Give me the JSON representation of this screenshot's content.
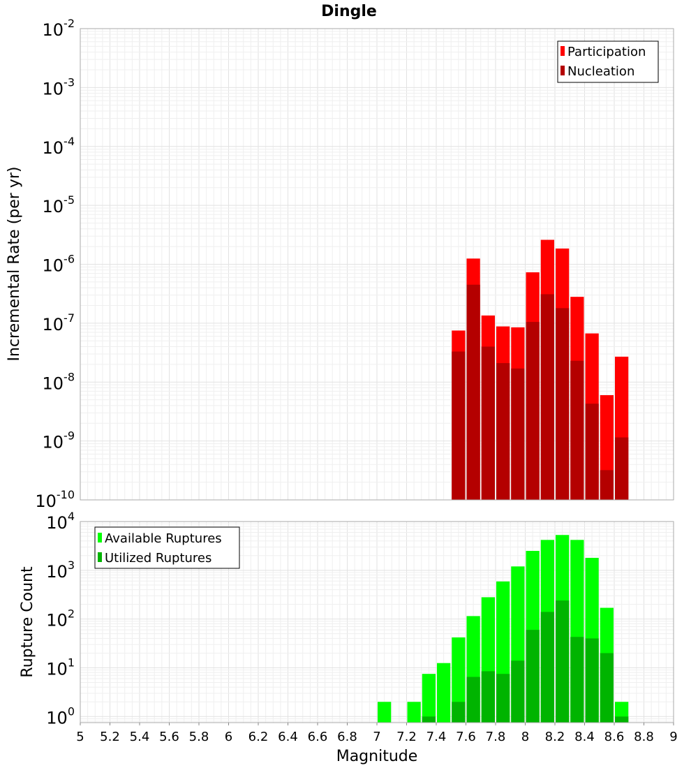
{
  "chart_data": [
    {
      "type": "bar",
      "title": "Dingle",
      "ylabel": "Incremental Rate (per yr)",
      "y_scale": "log",
      "ylim": [
        1e-10,
        0.01
      ],
      "xlim": [
        5,
        9
      ],
      "y_ticks": [
        {
          "base": "10",
          "exp": "-10"
        },
        {
          "base": "10",
          "exp": "-9"
        },
        {
          "base": "10",
          "exp": "-8"
        },
        {
          "base": "10",
          "exp": "-7"
        },
        {
          "base": "10",
          "exp": "-6"
        },
        {
          "base": "10",
          "exp": "-5"
        },
        {
          "base": "10",
          "exp": "-4"
        },
        {
          "base": "10",
          "exp": "-3"
        },
        {
          "base": "10",
          "exp": "-2"
        }
      ],
      "x": [
        7.55,
        7.65,
        7.75,
        7.85,
        7.95,
        8.05,
        8.15,
        8.25,
        8.35,
        8.45,
        8.55,
        8.65
      ],
      "series": [
        {
          "name": "Participation",
          "color": "#ff0000",
          "values": [
            7.5e-08,
            1.25e-06,
            1.35e-07,
            8.8e-08,
            8.5e-08,
            7.3e-07,
            2.6e-06,
            1.85e-06,
            2.8e-07,
            6.7e-08,
            6e-09,
            2.7e-08
          ]
        },
        {
          "name": "Nucleation",
          "color": "#b40000",
          "values": [
            3.3e-08,
            4.5e-07,
            4e-08,
            2.1e-08,
            1.7e-08,
            1.05e-07,
            3.1e-07,
            1.8e-07,
            2.3e-08,
            4.3e-09,
            3.2e-10,
            1.15e-09
          ]
        }
      ],
      "legend_position": "top-right",
      "grid": true
    },
    {
      "type": "bar",
      "ylabel": "Rupture Count",
      "xlabel": "Magnitude",
      "y_scale": "log",
      "ylim": [
        0.75,
        10000
      ],
      "xlim": [
        5,
        9
      ],
      "x_tick_labels": [
        "5",
        "5.2",
        "5.4",
        "5.6",
        "5.8",
        "6",
        "6.2",
        "6.4",
        "6.6",
        "6.8",
        "7",
        "7.2",
        "7.4",
        "7.6",
        "7.8",
        "8",
        "8.2",
        "8.4",
        "8.6",
        "8.8",
        "9"
      ],
      "y_ticks": [
        {
          "base": "10",
          "exp": "0"
        },
        {
          "base": "10",
          "exp": "1"
        },
        {
          "base": "10",
          "exp": "2"
        },
        {
          "base": "10",
          "exp": "3"
        },
        {
          "base": "10",
          "exp": "4"
        }
      ],
      "x": [
        7.05,
        7.25,
        7.35,
        7.45,
        7.55,
        7.65,
        7.75,
        7.85,
        7.95,
        8.05,
        8.15,
        8.25,
        8.35,
        8.45,
        8.55,
        8.65
      ],
      "series": [
        {
          "name": "Available Ruptures",
          "color": "#00ff00",
          "values": [
            2,
            2,
            7.5,
            12.5,
            42,
            115,
            280,
            590,
            1200,
            2500,
            4200,
            5300,
            4200,
            1800,
            170,
            2
          ]
        },
        {
          "name": "Utilized Ruptures",
          "color": "#00b400",
          "values": [
            0,
            0,
            1,
            0,
            2,
            6.5,
            8.5,
            7.5,
            14,
            60,
            140,
            240,
            43,
            40,
            20,
            1
          ]
        }
      ],
      "legend_position": "top-left",
      "grid": true
    }
  ]
}
